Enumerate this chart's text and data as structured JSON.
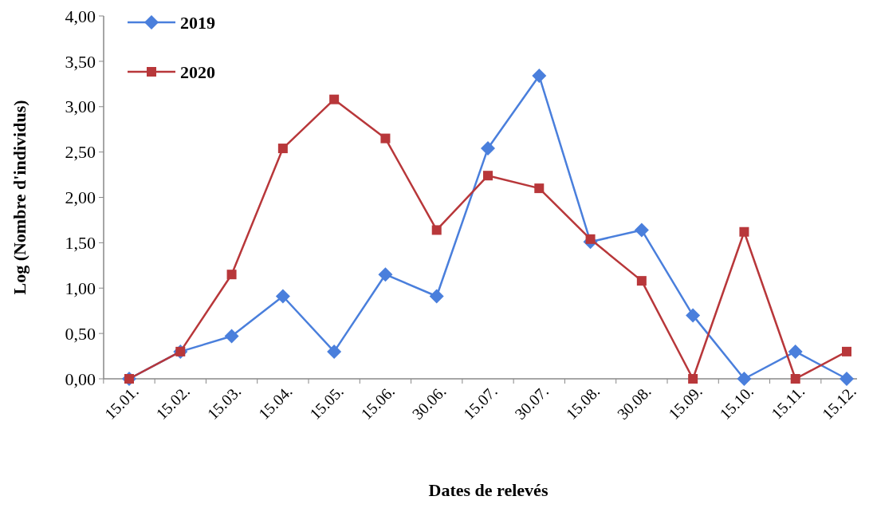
{
  "chart_data": {
    "type": "line",
    "xlabel": "Dates de relevés",
    "ylabel": "Log (Nombre d'individus)",
    "categories": [
      "15.01.",
      "15.02.",
      "15.03.",
      "15.04.",
      "15.05.",
      "15.06.",
      "30.06.",
      "15.07.",
      "30.07.",
      "15.08.",
      "30.08.",
      "15.09.",
      "15.10.",
      "15.11.",
      "15.12."
    ],
    "series": [
      {
        "name": "2019",
        "color": "#4a7fdc",
        "marker": "diamond",
        "values": [
          0,
          0.3,
          0.47,
          0.91,
          0.3,
          1.15,
          0.91,
          2.54,
          3.34,
          1.51,
          1.64,
          0.7,
          0,
          0.3,
          0
        ]
      },
      {
        "name": "2020",
        "color": "#b8373a",
        "marker": "square",
        "values": [
          0,
          0.3,
          1.15,
          2.54,
          3.08,
          2.65,
          1.64,
          2.24,
          2.1,
          1.54,
          1.08,
          0,
          1.62,
          0,
          0.3
        ]
      }
    ],
    "ylim": [
      0,
      4
    ],
    "yticks": [
      {
        "value": 0,
        "label": "0,00"
      },
      {
        "value": 0.5,
        "label": "0,50"
      },
      {
        "value": 1,
        "label": "1,00"
      },
      {
        "value": 1.5,
        "label": "1,50"
      },
      {
        "value": 2,
        "label": "2,00"
      },
      {
        "value": 2.5,
        "label": "2,50"
      },
      {
        "value": 3,
        "label": "3,00"
      },
      {
        "value": 3.5,
        "label": "3,50"
      },
      {
        "value": 4,
        "label": "4,00"
      }
    ],
    "legend": "top left",
    "grid": false,
    "line_style": "solid"
  }
}
